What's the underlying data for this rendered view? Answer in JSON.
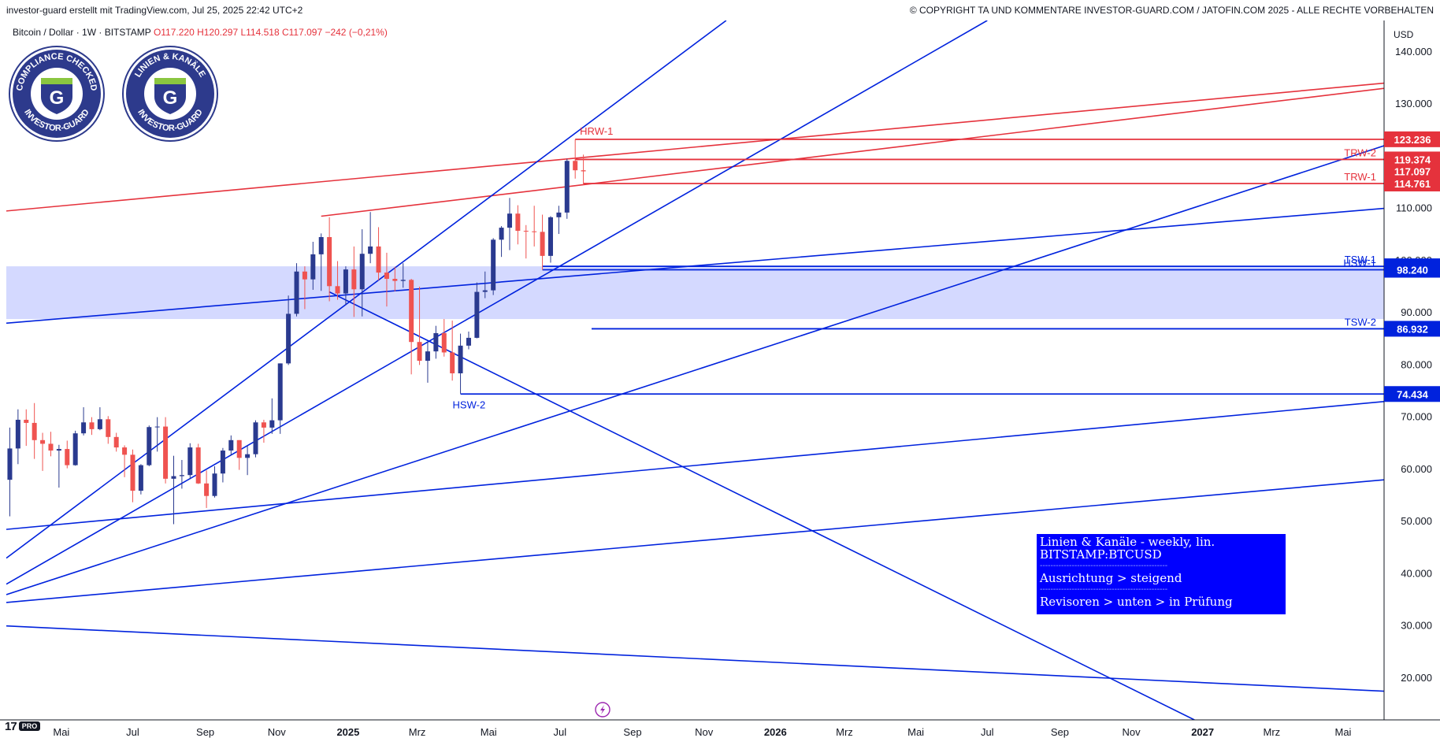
{
  "header": {
    "left_text": "investor-guard erstellt mit TradingView.com, Jul 25, 2025 22:42 UTC+2",
    "right_text": "© COPYRIGHT TA UND KOMMENTARE INVESTOR-GUARD.COM / JATOFIN.COM 2025 - ALLE RECHTE VORBEHALTEN"
  },
  "legend": {
    "symbol": "Bitcoin / Dollar · 1W · BITSTAMP",
    "ohlc": "O117.220  H120.297  L114.518  C117.097  −242 (−0,21%)"
  },
  "badges": [
    {
      "top_text": "COMPLIANCE CHECKED",
      "bottom_text": "INVESTOR-GUARD",
      "letter": "G"
    },
    {
      "top_text": "LINIEN & KANÄLE",
      "bottom_text": "INVESTOR-GUARD",
      "letter": "G"
    }
  ],
  "branding": {
    "tv_logo": "17",
    "tv_pro": "PRO"
  },
  "event_icon": "lightning-icon",
  "info_box": {
    "line1": "Linien & Kanäle - weekly, lin.",
    "line2": "BITSTAMP:BTCUSD",
    "separator": "------------------------------------------------",
    "line3": "Ausrichtung > steigend",
    "line4": "Revisoren > unten > in Prüfung"
  },
  "colors": {
    "bull": "#2a3a8f",
    "bear": "#ef5350",
    "blue_line": "#0022dd",
    "red_line": "#e5323c",
    "zone": "#d4d9ff",
    "info_box": "#0000ff"
  },
  "chart_data": {
    "type": "candlestick",
    "title": "Bitcoin / Dollar · 1W · BITSTAMP",
    "price_axis": {
      "unit": "USD",
      "ticks": [
        20000,
        30000,
        40000,
        50000,
        60000,
        70000,
        80000,
        90000,
        100000,
        110000,
        120000,
        130000,
        140000
      ],
      "tick_labels": [
        "20.000",
        "30.000",
        "40.000",
        "50.000",
        "60.000",
        "70.000",
        "80.000",
        "90.000",
        "100.000",
        "110.000",
        "120.000",
        "130.000",
        "140.000"
      ],
      "ylim": [
        12000,
        146000
      ]
    },
    "time_axis": {
      "ticks": [
        "2024-05-01",
        "2024-07-01",
        "2024-09-01",
        "2024-11-01",
        "2025-01-01",
        "2025-03-01",
        "2025-05-01",
        "2025-07-01",
        "2025-09-01",
        "2025-11-01",
        "2026-01-01",
        "2026-03-01",
        "2026-05-01",
        "2026-07-01",
        "2026-09-01",
        "2026-11-01",
        "2027-01-01",
        "2027-03-01",
        "2027-05-01"
      ],
      "tick_labels": [
        "Mai",
        "Jul",
        "Sep",
        "Nov",
        "2025",
        "Mrz",
        "Mai",
        "Jul",
        "Sep",
        "Nov",
        "2026",
        "Mrz",
        "Mai",
        "Jul",
        "Sep",
        "Nov",
        "2027",
        "Mrz",
        "Mai"
      ],
      "bold": [
        "2025",
        "2026",
        "2027"
      ],
      "xlim": [
        "2024-03-15",
        "2027-06-05"
      ]
    },
    "candles": [
      {
        "t": "2024-03-18",
        "o": 58000,
        "h": 68000,
        "l": 51000,
        "c": 64000
      },
      {
        "t": "2024-03-25",
        "o": 64000,
        "h": 71500,
        "l": 61000,
        "c": 69500
      },
      {
        "t": "2024-04-01",
        "o": 69500,
        "h": 71500,
        "l": 64500,
        "c": 68900
      },
      {
        "t": "2024-04-08",
        "o": 68900,
        "h": 72700,
        "l": 62000,
        "c": 65600
      },
      {
        "t": "2024-04-15",
        "o": 65600,
        "h": 67000,
        "l": 59700,
        "c": 64900
      },
      {
        "t": "2024-04-22",
        "o": 64900,
        "h": 67200,
        "l": 62500,
        "c": 63600
      },
      {
        "t": "2024-04-29",
        "o": 63600,
        "h": 64700,
        "l": 56500,
        "c": 63900
      },
      {
        "t": "2024-05-06",
        "o": 63900,
        "h": 65500,
        "l": 60200,
        "c": 60800
      },
      {
        "t": "2024-05-13",
        "o": 60800,
        "h": 67400,
        "l": 60700,
        "c": 66900
      },
      {
        "t": "2024-05-20",
        "o": 66900,
        "h": 71900,
        "l": 66500,
        "c": 69000
      },
      {
        "t": "2024-05-27",
        "o": 69000,
        "h": 70000,
        "l": 66600,
        "c": 67700
      },
      {
        "t": "2024-06-03",
        "o": 67700,
        "h": 71900,
        "l": 67500,
        "c": 69600
      },
      {
        "t": "2024-06-10",
        "o": 69600,
        "h": 70200,
        "l": 64900,
        "c": 66200
      },
      {
        "t": "2024-06-17",
        "o": 66200,
        "h": 67000,
        "l": 63400,
        "c": 64200
      },
      {
        "t": "2024-06-24",
        "o": 64200,
        "h": 64600,
        "l": 58500,
        "c": 62800
      },
      {
        "t": "2024-07-01",
        "o": 62800,
        "h": 63800,
        "l": 53700,
        "c": 55900
      },
      {
        "t": "2024-07-08",
        "o": 55900,
        "h": 61000,
        "l": 55200,
        "c": 60800
      },
      {
        "t": "2024-07-15",
        "o": 60800,
        "h": 68400,
        "l": 60600,
        "c": 68100
      },
      {
        "t": "2024-07-22",
        "o": 68100,
        "h": 70000,
        "l": 63400,
        "c": 68200
      },
      {
        "t": "2024-07-29",
        "o": 68200,
        "h": 70000,
        "l": 57300,
        "c": 58200
      },
      {
        "t": "2024-08-05",
        "o": 58200,
        "h": 62600,
        "l": 49500,
        "c": 58700
      },
      {
        "t": "2024-08-12",
        "o": 58700,
        "h": 61800,
        "l": 56300,
        "c": 58900
      },
      {
        "t": "2024-08-19",
        "o": 58900,
        "h": 65000,
        "l": 58100,
        "c": 64200
      },
      {
        "t": "2024-08-26",
        "o": 64200,
        "h": 64900,
        "l": 57200,
        "c": 57300
      },
      {
        "t": "2024-09-02",
        "o": 57300,
        "h": 59800,
        "l": 52600,
        "c": 54900
      },
      {
        "t": "2024-09-09",
        "o": 54900,
        "h": 60600,
        "l": 54600,
        "c": 59200
      },
      {
        "t": "2024-09-16",
        "o": 59200,
        "h": 64100,
        "l": 57500,
        "c": 63600
      },
      {
        "t": "2024-09-23",
        "o": 63600,
        "h": 66500,
        "l": 62700,
        "c": 65600
      },
      {
        "t": "2024-09-30",
        "o": 65600,
        "h": 65600,
        "l": 59900,
        "c": 62200
      },
      {
        "t": "2024-10-07",
        "o": 62200,
        "h": 64500,
        "l": 58900,
        "c": 62900
      },
      {
        "t": "2024-10-14",
        "o": 62900,
        "h": 69400,
        "l": 62300,
        "c": 69000
      },
      {
        "t": "2024-10-21",
        "o": 69000,
        "h": 69500,
        "l": 65100,
        "c": 68000
      },
      {
        "t": "2024-10-28",
        "o": 68000,
        "h": 73600,
        "l": 66800,
        "c": 69400
      },
      {
        "t": "2024-11-04",
        "o": 69400,
        "h": 80300,
        "l": 66800,
        "c": 80300
      },
      {
        "t": "2024-11-11",
        "o": 80300,
        "h": 93300,
        "l": 80000,
        "c": 89800
      },
      {
        "t": "2024-11-18",
        "o": 89800,
        "h": 99500,
        "l": 89300,
        "c": 97900
      },
      {
        "t": "2024-11-25",
        "o": 97900,
        "h": 98900,
        "l": 90700,
        "c": 96400
      },
      {
        "t": "2024-12-02",
        "o": 96400,
        "h": 103600,
        "l": 94400,
        "c": 101200
      },
      {
        "t": "2024-12-09",
        "o": 101200,
        "h": 105200,
        "l": 94200,
        "c": 104500
      },
      {
        "t": "2024-12-16",
        "o": 104500,
        "h": 108300,
        "l": 92200,
        "c": 95100
      },
      {
        "t": "2024-12-23",
        "o": 95100,
        "h": 99900,
        "l": 92500,
        "c": 93700
      },
      {
        "t": "2024-12-30",
        "o": 93700,
        "h": 98900,
        "l": 91500,
        "c": 98300
      },
      {
        "t": "2025-01-06",
        "o": 98300,
        "h": 102700,
        "l": 89200,
        "c": 94500
      },
      {
        "t": "2025-01-13",
        "o": 94500,
        "h": 106000,
        "l": 89300,
        "c": 101300
      },
      {
        "t": "2025-01-20",
        "o": 101300,
        "h": 109300,
        "l": 99500,
        "c": 102700
      },
      {
        "t": "2025-01-27",
        "o": 102700,
        "h": 106400,
        "l": 96200,
        "c": 97700
      },
      {
        "t": "2025-02-03",
        "o": 97700,
        "h": 101500,
        "l": 91200,
        "c": 96500
      },
      {
        "t": "2025-02-10",
        "o": 96500,
        "h": 98800,
        "l": 94100,
        "c": 96100
      },
      {
        "t": "2025-02-17",
        "o": 96100,
        "h": 99500,
        "l": 94800,
        "c": 96300
      },
      {
        "t": "2025-02-24",
        "o": 96300,
        "h": 96500,
        "l": 78200,
        "c": 84400
      },
      {
        "t": "2025-03-03",
        "o": 84400,
        "h": 95000,
        "l": 80000,
        "c": 80800
      },
      {
        "t": "2025-03-10",
        "o": 80800,
        "h": 84500,
        "l": 76600,
        "c": 82600
      },
      {
        "t": "2025-03-17",
        "o": 82600,
        "h": 87500,
        "l": 81200,
        "c": 86100
      },
      {
        "t": "2025-03-24",
        "o": 86100,
        "h": 88800,
        "l": 81600,
        "c": 82400
      },
      {
        "t": "2025-03-31",
        "o": 82400,
        "h": 88500,
        "l": 77000,
        "c": 78400
      },
      {
        "t": "2025-04-07",
        "o": 78400,
        "h": 86000,
        "l": 74500,
        "c": 83700
      },
      {
        "t": "2025-04-14",
        "o": 83700,
        "h": 86400,
        "l": 83000,
        "c": 85200
      },
      {
        "t": "2025-04-21",
        "o": 85200,
        "h": 95800,
        "l": 85100,
        "c": 94000
      },
      {
        "t": "2025-04-28",
        "o": 94000,
        "h": 97900,
        "l": 92800,
        "c": 94300
      },
      {
        "t": "2025-05-05",
        "o": 94300,
        "h": 104300,
        "l": 93400,
        "c": 104000
      },
      {
        "t": "2025-05-12",
        "o": 104000,
        "h": 106600,
        "l": 100700,
        "c": 106300
      },
      {
        "t": "2025-05-19",
        "o": 106300,
        "h": 112000,
        "l": 102000,
        "c": 109000
      },
      {
        "t": "2025-05-26",
        "o": 109000,
        "h": 110600,
        "l": 103100,
        "c": 105700
      },
      {
        "t": "2025-06-02",
        "o": 105700,
        "h": 106800,
        "l": 100400,
        "c": 105600
      },
      {
        "t": "2025-06-09",
        "o": 105600,
        "h": 110500,
        "l": 102700,
        "c": 105500
      },
      {
        "t": "2025-06-16",
        "o": 105500,
        "h": 108800,
        "l": 98200,
        "c": 100900
      },
      {
        "t": "2025-06-23",
        "o": 100900,
        "h": 108500,
        "l": 99600,
        "c": 108300
      },
      {
        "t": "2025-06-30",
        "o": 108300,
        "h": 110500,
        "l": 105100,
        "c": 109200
      },
      {
        "t": "2025-07-07",
        "o": 109200,
        "h": 119500,
        "l": 108000,
        "c": 119100
      },
      {
        "t": "2025-07-14",
        "o": 119100,
        "h": 123200,
        "l": 115700,
        "c": 117300
      },
      {
        "t": "2025-07-21",
        "o": 117300,
        "h": 120300,
        "l": 114500,
        "c": 117100
      }
    ],
    "lines": [
      {
        "name": "red-channel-upper",
        "color": "red",
        "p1": [
          "2024-03-15",
          109500
        ],
        "p2": [
          "2027-06-05",
          134000
        ]
      },
      {
        "name": "red-channel-lower",
        "color": "red",
        "p1": [
          "2024-12-09",
          108500
        ],
        "p2": [
          "2027-06-05",
          133000
        ]
      },
      {
        "name": "blue-rising-1",
        "color": "blue",
        "p1": [
          "2024-03-15",
          43000
        ],
        "p2": [
          "2025-11-20",
          146000
        ]
      },
      {
        "name": "blue-rising-2",
        "color": "blue",
        "p1": [
          "2024-03-15",
          38000
        ],
        "p2": [
          "2026-07-01",
          146000
        ]
      },
      {
        "name": "blue-rising-3",
        "color": "blue",
        "p1": [
          "2024-03-15",
          36000
        ],
        "p2": [
          "2027-06-05",
          122000
        ]
      },
      {
        "name": "blue-channel-mid",
        "color": "blue",
        "p1": [
          "2024-03-15",
          88000
        ],
        "p2": [
          "2027-06-05",
          110000
        ]
      },
      {
        "name": "blue-channel-low",
        "color": "blue",
        "p1": [
          "2024-03-15",
          48500
        ],
        "p2": [
          "2027-06-05",
          73000
        ]
      },
      {
        "name": "blue-channel-lower",
        "color": "blue",
        "p1": [
          "2024-03-15",
          34500
        ],
        "p2": [
          "2027-06-05",
          58000
        ]
      },
      {
        "name": "blue-falling",
        "color": "blue",
        "p1": [
          "2024-12-16",
          94000
        ],
        "p2": [
          "2026-12-25",
          12000
        ]
      },
      {
        "name": "blue-descending",
        "color": "blue",
        "p1": [
          "2024-03-15",
          30000
        ],
        "p2": [
          "2027-06-05",
          17500
        ]
      }
    ],
    "zone": {
      "from": "2024-03-15",
      "to": "2027-06-05",
      "low": 88800,
      "high": 98900
    },
    "levels": [
      {
        "label": "HRW-1",
        "value": 123236,
        "price_label": "123.236",
        "color": "red",
        "from": "2025-07-14",
        "label_side": "left"
      },
      {
        "label": "TRW-2",
        "value": 119374,
        "price_label": "119.374",
        "color": "red",
        "from": "2025-07-14",
        "label_side": "right"
      },
      {
        "label": "",
        "value": 117097,
        "price_label": "117.097",
        "color": "red",
        "from": "2027-06-05",
        "label_side": "none"
      },
      {
        "label": "TRW-1",
        "value": 114761,
        "price_label": "114.761",
        "color": "red",
        "from": "2025-07-21",
        "label_side": "right"
      },
      {
        "label": "TSW-1",
        "value": 98905,
        "price_label": "98.905",
        "color": "blue",
        "from": "2025-06-16",
        "label_side": "right"
      },
      {
        "label": "HSW-1",
        "value": 98240,
        "price_label": "98.240",
        "color": "blue",
        "from": "2025-06-16",
        "label_side": "right"
      },
      {
        "label": "TSW-2",
        "value": 86932,
        "price_label": "86.932",
        "color": "blue",
        "from": "2025-07-28",
        "label_side": "right"
      },
      {
        "label": "HSW-2",
        "value": 74434,
        "price_label": "74.434",
        "color": "blue",
        "from": "2025-04-07",
        "label_side": "below"
      }
    ]
  }
}
